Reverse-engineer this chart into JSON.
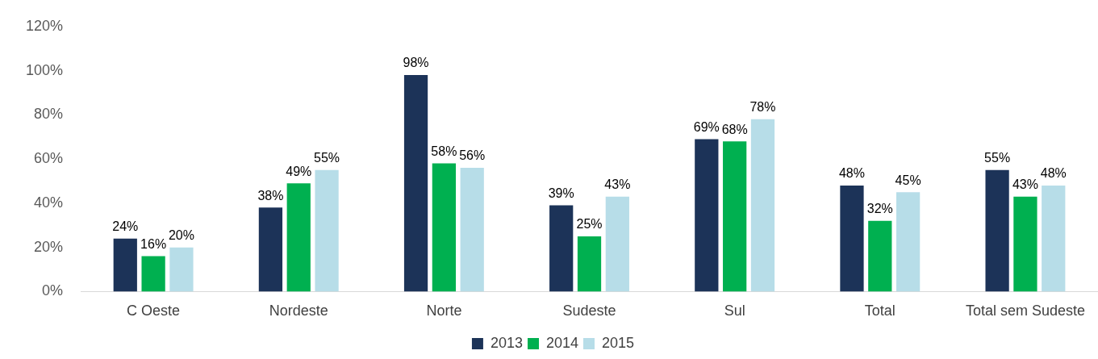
{
  "chart_data": {
    "type": "bar",
    "categories": [
      "C Oeste",
      "Nordeste",
      "Norte",
      "Sudeste",
      "Sul",
      "Total",
      "Total sem Sudeste"
    ],
    "series": [
      {
        "name": "2013",
        "color": "#1c3358",
        "values": [
          24,
          38,
          98,
          39,
          69,
          48,
          55
        ],
        "value_labels": [
          "24%",
          "38%",
          "98%",
          "39%",
          "69%",
          "48%",
          "55%"
        ]
      },
      {
        "name": "2014",
        "color": "#00b050",
        "values": [
          16,
          49,
          58,
          25,
          68,
          32,
          43
        ],
        "value_labels": [
          "16%",
          "49%",
          "58%",
          "25%",
          "68%",
          "32%",
          "43%"
        ]
      },
      {
        "name": "2015",
        "color": "#b7dde8",
        "values": [
          20,
          55,
          56,
          43,
          78,
          45,
          48
        ],
        "value_labels": [
          "20%",
          "55%",
          "56%",
          "43%",
          "78%",
          "45%",
          "48%"
        ]
      }
    ],
    "ylim": [
      0,
      120
    ],
    "yticks": [
      {
        "value": 0,
        "label": "0%"
      },
      {
        "value": 20,
        "label": "20%"
      },
      {
        "value": 40,
        "label": "40%"
      },
      {
        "value": 60,
        "label": "60%"
      },
      {
        "value": 80,
        "label": "80%"
      },
      {
        "value": 100,
        "label": "100%"
      },
      {
        "value": 120,
        "label": "120%"
      }
    ],
    "grid": false,
    "legend": "bottom"
  }
}
